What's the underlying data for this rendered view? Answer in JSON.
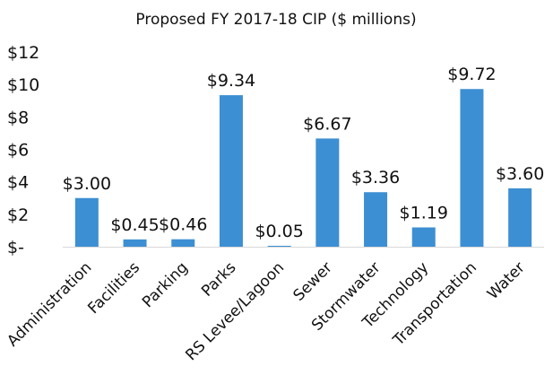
{
  "chart_data": {
    "type": "bar",
    "title": "Proposed FY 2017-18 CIP ($ millions)",
    "categories": [
      "Administration",
      "Facilities",
      "Parking",
      "Parks",
      "RS Levee/Lagoon",
      "Sewer",
      "Stormwater",
      "Technology",
      "Transportation",
      "Water"
    ],
    "values": [
      3.0,
      0.45,
      0.46,
      9.34,
      0.05,
      6.67,
      3.36,
      1.19,
      9.72,
      3.6
    ],
    "data_labels": [
      "$3.00",
      "$0.45",
      "$0.46",
      "$9.34",
      "$0.05",
      "$6.67",
      "$3.36",
      "$1.19",
      "$9.72",
      "$3.60"
    ],
    "y_ticks": [
      0,
      2,
      4,
      6,
      8,
      10,
      12
    ],
    "y_tick_labels": [
      "$-",
      "$2",
      "$4",
      "$6",
      "$8",
      "$10",
      "$12"
    ],
    "ylim": [
      0,
      12
    ],
    "xlabel": "",
    "ylabel": "",
    "grid": false,
    "legend": "none",
    "bar_color": "#3d8fd3"
  }
}
